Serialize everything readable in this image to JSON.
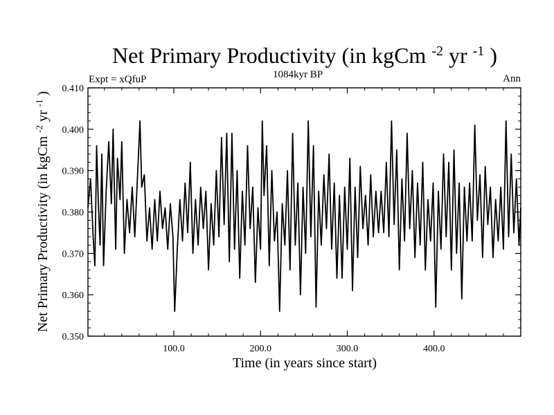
{
  "chart_data": {
    "type": "line",
    "title": "Net Primary Productivity (in kgCm",
    "title_sup1": "-2",
    "title_mid": "yr",
    "title_sup2": "-1",
    "title_end": ")",
    "subtitle": "1084kyr BP",
    "left_label": "Expt = xQfuP",
    "right_label": "Ann",
    "xlabel": "Time (in years since start)",
    "ylabel": "Net Primary Productivity (in kgCm",
    "ylabel_sup1": "-2",
    "ylabel_mid": "yr",
    "ylabel_sup2": "-1",
    "ylabel_end": ")",
    "xlim": [
      1,
      500
    ],
    "ylim": [
      0.35,
      0.41
    ],
    "xticks": [
      100,
      200,
      300,
      400
    ],
    "xtick_labels": [
      "100.0",
      "200.0",
      "300.0",
      "400.0"
    ],
    "yticks": [
      0.35,
      0.36,
      0.37,
      0.38,
      0.39,
      0.4,
      0.41
    ],
    "ytick_labels": [
      "0.350",
      "0.360",
      "0.370",
      "0.380",
      "0.390",
      "0.400",
      "0.410"
    ],
    "series": [
      {
        "name": "Net Primary Productivity",
        "color": "#000000",
        "key_points": [
          [
            1,
            0.381
          ],
          [
            4,
            0.388
          ],
          [
            7,
            0.374
          ],
          [
            9,
            0.367
          ],
          [
            11,
            0.396
          ],
          [
            13,
            0.382
          ],
          [
            15,
            0.372
          ],
          [
            17,
            0.394
          ],
          [
            19,
            0.367
          ],
          [
            22,
            0.385
          ],
          [
            25,
            0.397
          ],
          [
            28,
            0.382
          ],
          [
            30,
            0.4
          ],
          [
            33,
            0.371
          ],
          [
            35,
            0.393
          ],
          [
            38,
            0.383
          ],
          [
            40,
            0.397
          ],
          [
            43,
            0.37
          ],
          [
            46,
            0.383
          ],
          [
            49,
            0.375
          ],
          [
            52,
            0.386
          ],
          [
            55,
            0.374
          ],
          [
            58,
            0.388
          ],
          [
            61,
            0.402
          ],
          [
            63,
            0.386
          ],
          [
            66,
            0.389
          ],
          [
            69,
            0.373
          ],
          [
            72,
            0.381
          ],
          [
            75,
            0.371
          ],
          [
            78,
            0.383
          ],
          [
            81,
            0.373
          ],
          [
            84,
            0.385
          ],
          [
            87,
            0.376
          ],
          [
            90,
            0.381
          ],
          [
            93,
            0.371
          ],
          [
            96,
            0.382
          ],
          [
            99,
            0.374
          ],
          [
            101,
            0.356
          ],
          [
            104,
            0.371
          ],
          [
            107,
            0.383
          ],
          [
            110,
            0.373
          ],
          [
            113,
            0.387
          ],
          [
            116,
            0.375
          ],
          [
            119,
            0.392
          ],
          [
            122,
            0.37
          ],
          [
            125,
            0.383
          ],
          [
            128,
            0.372
          ],
          [
            131,
            0.386
          ],
          [
            134,
            0.376
          ],
          [
            137,
            0.385
          ],
          [
            140,
            0.366
          ],
          [
            143,
            0.382
          ],
          [
            146,
            0.372
          ],
          [
            149,
            0.39
          ],
          [
            152,
            0.374
          ],
          [
            155,
            0.398
          ],
          [
            158,
            0.377
          ],
          [
            161,
            0.399
          ],
          [
            164,
            0.368
          ],
          [
            167,
            0.399
          ],
          [
            170,
            0.371
          ],
          [
            173,
            0.39
          ],
          [
            176,
            0.364
          ],
          [
            179,
            0.385
          ],
          [
            182,
            0.372
          ],
          [
            185,
            0.396
          ],
          [
            188,
            0.376
          ],
          [
            191,
            0.386
          ],
          [
            194,
            0.363
          ],
          [
            197,
            0.381
          ],
          [
            200,
            0.371
          ],
          [
            202,
            0.402
          ],
          [
            204,
            0.384
          ],
          [
            207,
            0.396
          ],
          [
            210,
            0.367
          ],
          [
            213,
            0.39
          ],
          [
            216,
            0.373
          ],
          [
            219,
            0.38
          ],
          [
            222,
            0.356
          ],
          [
            225,
            0.382
          ],
          [
            228,
            0.372
          ],
          [
            231,
            0.39
          ],
          [
            234,
            0.366
          ],
          [
            237,
            0.399
          ],
          [
            240,
            0.372
          ],
          [
            243,
            0.387
          ],
          [
            246,
            0.36
          ],
          [
            249,
            0.386
          ],
          [
            252,
            0.37
          ],
          [
            255,
            0.402
          ],
          [
            258,
            0.374
          ],
          [
            261,
            0.396
          ],
          [
            264,
            0.357
          ],
          [
            267,
            0.385
          ],
          [
            270,
            0.372
          ],
          [
            273,
            0.389
          ],
          [
            276,
            0.376
          ],
          [
            279,
            0.394
          ],
          [
            282,
            0.371
          ],
          [
            285,
            0.387
          ],
          [
            288,
            0.364
          ],
          [
            291,
            0.384
          ],
          [
            294,
            0.364
          ],
          [
            297,
            0.386
          ],
          [
            300,
            0.371
          ],
          [
            303,
            0.393
          ],
          [
            306,
            0.361
          ],
          [
            309,
            0.386
          ],
          [
            312,
            0.369
          ],
          [
            315,
            0.391
          ],
          [
            318,
            0.376
          ],
          [
            321,
            0.384
          ],
          [
            324,
            0.372
          ],
          [
            327,
            0.389
          ],
          [
            330,
            0.374
          ],
          [
            333,
            0.385
          ],
          [
            336,
            0.375
          ],
          [
            339,
            0.385
          ],
          [
            342,
            0.375
          ],
          [
            345,
            0.392
          ],
          [
            348,
            0.374
          ],
          [
            351,
            0.402
          ],
          [
            354,
            0.377
          ],
          [
            357,
            0.395
          ],
          [
            360,
            0.366
          ],
          [
            363,
            0.388
          ],
          [
            366,
            0.373
          ],
          [
            369,
            0.399
          ],
          [
            372,
            0.376
          ],
          [
            375,
            0.39
          ],
          [
            378,
            0.369
          ],
          [
            381,
            0.387
          ],
          [
            384,
            0.372
          ],
          [
            387,
            0.392
          ],
          [
            390,
            0.366
          ],
          [
            393,
            0.383
          ],
          [
            396,
            0.373
          ],
          [
            399,
            0.387
          ],
          [
            402,
            0.357
          ],
          [
            405,
            0.385
          ],
          [
            408,
            0.371
          ],
          [
            411,
            0.394
          ],
          [
            414,
            0.374
          ],
          [
            417,
            0.392
          ],
          [
            420,
            0.366
          ],
          [
            423,
            0.395
          ],
          [
            426,
            0.37
          ],
          [
            429,
            0.387
          ],
          [
            432,
            0.359
          ],
          [
            435,
            0.386
          ],
          [
            438,
            0.373
          ],
          [
            441,
            0.387
          ],
          [
            444,
            0.373
          ],
          [
            447,
            0.401
          ],
          [
            450,
            0.378
          ],
          [
            453,
            0.389
          ],
          [
            456,
            0.369
          ],
          [
            459,
            0.391
          ],
          [
            462,
            0.377
          ],
          [
            465,
            0.386
          ],
          [
            468,
            0.369
          ],
          [
            471,
            0.383
          ],
          [
            474,
            0.373
          ],
          [
            477,
            0.386
          ],
          [
            480,
            0.371
          ],
          [
            483,
            0.402
          ],
          [
            486,
            0.374
          ],
          [
            489,
            0.394
          ],
          [
            492,
            0.375
          ],
          [
            495,
            0.388
          ],
          [
            498,
            0.372
          ],
          [
            500,
            0.381
          ]
        ]
      }
    ]
  }
}
